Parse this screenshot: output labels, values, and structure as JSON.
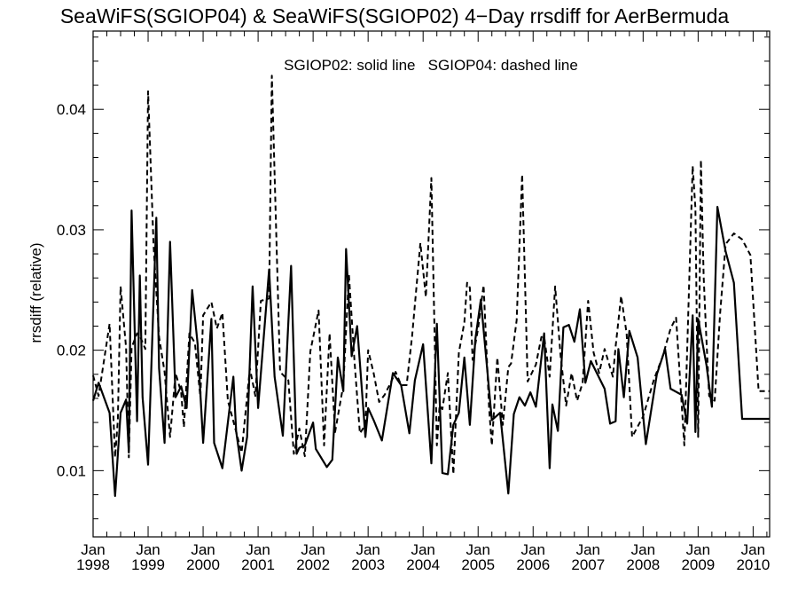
{
  "chart_data": {
    "type": "line",
    "title": "SeaWiFS(SGIOP04) & SeaWiFS(SGIOP02) 4−Day rrsdiff for AerBermuda",
    "annotation": "SGIOP02: solid line   SGIOP04: dashed line",
    "xlabel": "",
    "ylabel": "rrsdiff (relative)",
    "xlim": [
      1998.0,
      2010.3
    ],
    "ylim": [
      0.0045,
      0.0465
    ],
    "yticks": [
      0.01,
      0.02,
      0.03,
      0.04
    ],
    "ytick_labels": [
      "0.01",
      "0.02",
      "0.03",
      "0.04"
    ],
    "xticks": [
      1998,
      1999,
      2000,
      2001,
      2002,
      2003,
      2004,
      2005,
      2006,
      2007,
      2008,
      2009,
      2010
    ],
    "xtick_labels": [
      [
        "Jan",
        "1998"
      ],
      [
        "Jan",
        "1999"
      ],
      [
        "Jan",
        "2000"
      ],
      [
        "Jan",
        "2001"
      ],
      [
        "Jan",
        "2002"
      ],
      [
        "Jan",
        "2003"
      ],
      [
        "Jan",
        "2004"
      ],
      [
        "Jan",
        "2005"
      ],
      [
        "Jan",
        "2006"
      ],
      [
        "Jan",
        "2007"
      ],
      [
        "Jan",
        "2008"
      ],
      [
        "Jan",
        "2009"
      ],
      [
        "Jan",
        "2010"
      ]
    ],
    "grid": false,
    "series": [
      {
        "name": "SGIOP02",
        "style": "solid",
        "x": [
          1998.0,
          1998.1,
          1998.3,
          1998.4,
          1998.5,
          1998.6,
          1998.65,
          1998.7,
          1998.8,
          1998.85,
          1998.9,
          1999.0,
          1999.15,
          1999.2,
          1999.3,
          1999.4,
          1999.5,
          1999.6,
          1999.7,
          1999.8,
          1999.9,
          2000.0,
          2000.15,
          2000.2,
          2000.35,
          2000.55,
          2000.6,
          2000.7,
          2000.8,
          2000.9,
          2001.0,
          2001.2,
          2001.3,
          2001.45,
          2001.6,
          2001.7,
          2001.75,
          2001.85,
          2002.0,
          2002.05,
          2002.25,
          2002.35,
          2002.45,
          2002.55,
          2002.6,
          2002.7,
          2002.8,
          2002.95,
          2003.0,
          2003.1,
          2003.25,
          2003.45,
          2003.6,
          2003.75,
          2003.85,
          2004.0,
          2004.15,
          2004.25,
          2004.35,
          2004.45,
          2004.55,
          2004.65,
          2004.75,
          2004.85,
          2004.95,
          2005.05,
          2005.25,
          2005.4,
          2005.55,
          2005.65,
          2005.75,
          2005.85,
          2005.95,
          2006.05,
          2006.2,
          2006.3,
          2006.35,
          2006.45,
          2006.55,
          2006.65,
          2006.75,
          2006.85,
          2006.95,
          2007.05,
          2007.3,
          2007.4,
          2007.5,
          2007.55,
          2007.65,
          2007.75,
          2007.9,
          2008.05,
          2008.25,
          2008.4,
          2008.5,
          2008.7,
          2008.8,
          2008.9,
          2008.95,
          2009.0,
          2009.15,
          2009.25,
          2009.35,
          2009.5,
          2009.65,
          2009.8,
          2010.0,
          2010.15,
          2010.25,
          2010.3
        ],
        "values": [
          0.0158,
          0.0173,
          0.0148,
          0.0079,
          0.0148,
          0.0159,
          0.0115,
          0.0316,
          0.0141,
          0.0262,
          0.0161,
          0.0105,
          0.031,
          0.0185,
          0.0123,
          0.029,
          0.0161,
          0.017,
          0.0152,
          0.025,
          0.0205,
          0.0123,
          0.0226,
          0.0123,
          0.0102,
          0.0178,
          0.0133,
          0.01,
          0.0128,
          0.0253,
          0.0152,
          0.0267,
          0.0178,
          0.0129,
          0.027,
          0.0114,
          0.0119,
          0.0121,
          0.014,
          0.0118,
          0.0103,
          0.0109,
          0.0194,
          0.0166,
          0.0284,
          0.0195,
          0.022,
          0.0128,
          0.0152,
          0.0142,
          0.0125,
          0.0181,
          0.0171,
          0.0131,
          0.0175,
          0.0205,
          0.0106,
          0.0222,
          0.0098,
          0.0097,
          0.0138,
          0.0148,
          0.0194,
          0.0138,
          0.0209,
          0.0242,
          0.0142,
          0.0148,
          0.0081,
          0.0147,
          0.0161,
          0.0154,
          0.0165,
          0.0153,
          0.0214,
          0.0102,
          0.0155,
          0.0133,
          0.0219,
          0.0221,
          0.0207,
          0.0234,
          0.0173,
          0.0191,
          0.0168,
          0.0139,
          0.0141,
          0.0201,
          0.0161,
          0.0216,
          0.0194,
          0.0122,
          0.018,
          0.0201,
          0.0168,
          0.0163,
          0.0139,
          0.0229,
          0.0132,
          0.0226,
          0.0188,
          0.0153,
          0.0319,
          0.0282,
          0.0256,
          0.0143,
          0.0143,
          0.0143,
          0.0143,
          0.0143
        ]
      },
      {
        "name": "SGIOP04",
        "style": "dashed",
        "x": [
          1998.0,
          1998.1,
          1998.3,
          1998.4,
          1998.45,
          1998.5,
          1998.6,
          1998.65,
          1998.7,
          1998.8,
          1998.85,
          1998.95,
          1999.0,
          1999.1,
          1999.2,
          1999.3,
          1999.4,
          1999.5,
          1999.6,
          1999.65,
          1999.75,
          1999.85,
          1999.95,
          2000.0,
          2000.15,
          2000.25,
          2000.35,
          2000.45,
          2000.55,
          2000.7,
          2000.85,
          2000.95,
          2001.05,
          2001.2,
          2001.25,
          2001.4,
          2001.55,
          2001.65,
          2001.75,
          2001.85,
          2001.95,
          2002.1,
          2002.2,
          2002.3,
          2002.4,
          2002.55,
          2002.65,
          2002.75,
          2002.85,
          2002.95,
          2003.0,
          2003.1,
          2003.2,
          2003.3,
          2003.4,
          2003.5,
          2003.6,
          2003.7,
          2003.8,
          2003.95,
          2004.05,
          2004.15,
          2004.25,
          2004.3,
          2004.35,
          2004.45,
          2004.55,
          2004.65,
          2004.75,
          2004.8,
          2004.85,
          2004.9,
          2005.0,
          2005.1,
          2005.2,
          2005.25,
          2005.35,
          2005.45,
          2005.55,
          2005.6,
          2005.7,
          2005.8,
          2005.9,
          2006.05,
          2006.15,
          2006.2,
          2006.3,
          2006.4,
          2006.5,
          2006.6,
          2006.7,
          2006.8,
          2006.9,
          2007.0,
          2007.1,
          2007.2,
          2007.3,
          2007.45,
          2007.5,
          2007.6,
          2007.7,
          2007.8,
          2008.0,
          2008.2,
          2008.3,
          2008.35,
          2008.5,
          2008.6,
          2008.75,
          2008.9,
          2008.95,
          2009.0,
          2009.05,
          2009.1,
          2009.15,
          2009.2,
          2009.3,
          2009.4,
          2009.5,
          2009.65,
          2009.8,
          2009.95,
          2010.1,
          2010.2,
          2010.3
        ],
        "values": [
          0.0179,
          0.0162,
          0.0222,
          0.0111,
          0.0142,
          0.0253,
          0.0202,
          0.0111,
          0.0202,
          0.0214,
          0.0212,
          0.0201,
          0.0415,
          0.0287,
          0.0211,
          0.0182,
          0.0128,
          0.0181,
          0.0165,
          0.0136,
          0.0214,
          0.0206,
          0.0161,
          0.0229,
          0.024,
          0.0218,
          0.0231,
          0.0158,
          0.0141,
          0.0115,
          0.0185,
          0.0162,
          0.0241,
          0.0243,
          0.0428,
          0.0182,
          0.0175,
          0.0114,
          0.0135,
          0.0112,
          0.0199,
          0.0233,
          0.0121,
          0.0214,
          0.0132,
          0.0171,
          0.0263,
          0.0192,
          0.0131,
          0.0138,
          0.02,
          0.0181,
          0.0157,
          0.0163,
          0.0172,
          0.0182,
          0.0171,
          0.0171,
          0.0212,
          0.0289,
          0.0244,
          0.0343,
          0.0121,
          0.0154,
          0.0151,
          0.0181,
          0.0097,
          0.0198,
          0.0223,
          0.0256,
          0.0252,
          0.0192,
          0.0218,
          0.0254,
          0.0152,
          0.0121,
          0.0194,
          0.0138,
          0.0186,
          0.0189,
          0.0225,
          0.0346,
          0.0174,
          0.0188,
          0.0211,
          0.0211,
          0.0178,
          0.0253,
          0.0195,
          0.0154,
          0.0181,
          0.0158,
          0.0173,
          0.0241,
          0.0198,
          0.0181,
          0.0201,
          0.0178,
          0.0203,
          0.0245,
          0.0214,
          0.0128,
          0.0145,
          0.0176,
          0.0188,
          0.0194,
          0.0218,
          0.0227,
          0.0121,
          0.0353,
          0.0318,
          0.0128,
          0.0358,
          0.0261,
          0.0209,
          0.0162,
          0.0158,
          0.0231,
          0.0288,
          0.0297,
          0.0292,
          0.0279,
          0.0166,
          0.0166,
          0.0166
        ]
      }
    ]
  }
}
